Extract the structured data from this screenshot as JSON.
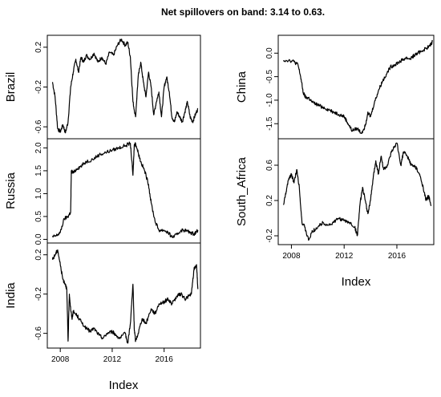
{
  "title": "Net spillovers on band: 3.14 to 0.63.",
  "chart_data": {
    "type": "line",
    "title": "Net spillovers on band: 3.14 to 0.63.",
    "xlabel": "Index",
    "xlim": [
      2007.0,
      2018.8
    ],
    "x_ticks": [
      2008,
      2012,
      2016
    ],
    "x_tick_labels": [
      "2008",
      "2012",
      "2016"
    ],
    "panels": [
      {
        "name": "Brazil",
        "ylabel": "Brazil",
        "ylim": [
          -0.72,
          0.32
        ],
        "y_ticks": [
          0.2,
          -0.2,
          -0.6
        ],
        "y_tick_labels": [
          "0.2",
          "-0.2",
          "-0.6"
        ],
        "x": [
          2007.4,
          2007.6,
          2007.8,
          2008.0,
          2008.2,
          2008.4,
          2008.6,
          2008.8,
          2009.0,
          2009.2,
          2009.4,
          2009.6,
          2009.8,
          2010.0,
          2010.3,
          2010.6,
          2010.9,
          2011.2,
          2011.5,
          2011.8,
          2012.1,
          2012.4,
          2012.7,
          2013.0,
          2013.2,
          2013.4,
          2013.6,
          2013.8,
          2014.0,
          2014.2,
          2014.4,
          2014.6,
          2014.8,
          2015.0,
          2015.2,
          2015.4,
          2015.6,
          2015.8,
          2016.0,
          2016.2,
          2016.4,
          2016.6,
          2016.8,
          2017.0,
          2017.2,
          2017.4,
          2017.6,
          2017.8,
          2018.0,
          2018.2,
          2018.4,
          2018.6
        ],
        "y": [
          -0.15,
          -0.3,
          -0.62,
          -0.65,
          -0.58,
          -0.66,
          -0.55,
          -0.2,
          -0.05,
          0.08,
          -0.05,
          0.1,
          0.05,
          0.12,
          0.08,
          0.14,
          0.05,
          0.1,
          0.03,
          0.15,
          0.12,
          0.22,
          0.28,
          0.22,
          0.25,
          0.1,
          -0.35,
          -0.5,
          -0.1,
          0.05,
          -0.15,
          -0.3,
          -0.05,
          -0.2,
          -0.48,
          -0.35,
          -0.25,
          -0.5,
          -0.2,
          -0.1,
          -0.25,
          -0.5,
          -0.55,
          -0.45,
          -0.5,
          -0.55,
          -0.45,
          -0.35,
          -0.5,
          -0.55,
          -0.48,
          -0.42
        ]
      },
      {
        "name": "Russia",
        "ylabel": "Russia",
        "ylim": [
          -0.08,
          2.2
        ],
        "y_ticks": [
          0.0,
          0.5,
          1.0,
          1.5,
          2.0
        ],
        "y_tick_labels": [
          "0.0",
          "0.5",
          "1.0",
          "1.5",
          "2.0"
        ],
        "x": [
          2007.4,
          2007.7,
          2008.0,
          2008.3,
          2008.6,
          2008.8,
          2008.85,
          2009.0,
          2009.3,
          2009.6,
          2010.0,
          2010.5,
          2011.0,
          2011.5,
          2012.0,
          2012.5,
          2013.0,
          2013.4,
          2013.6,
          2013.7,
          2013.8,
          2014.0,
          2014.2,
          2014.5,
          2014.8,
          2015.0,
          2015.3,
          2015.6,
          2016.0,
          2016.3,
          2016.6,
          2017.0,
          2017.3,
          2017.6,
          2018.0,
          2018.3,
          2018.6
        ],
        "y": [
          0.05,
          0.08,
          0.15,
          0.45,
          0.5,
          0.6,
          1.5,
          1.45,
          1.55,
          1.6,
          1.7,
          1.75,
          1.85,
          1.9,
          1.95,
          2.0,
          2.05,
          2.1,
          1.4,
          2.05,
          2.1,
          1.9,
          1.7,
          1.5,
          1.2,
          0.8,
          0.4,
          0.2,
          0.2,
          0.15,
          0.05,
          0.1,
          0.2,
          0.2,
          0.15,
          0.12,
          0.2
        ]
      },
      {
        "name": "India",
        "ylabel": "India",
        "ylim": [
          -0.75,
          0.32
        ],
        "y_ticks": [
          0.2,
          -0.2,
          -0.6
        ],
        "y_tick_labels": [
          "0.2",
          "-0.2",
          "-0.6"
        ],
        "x": [
          2007.4,
          2007.6,
          2007.8,
          2008.0,
          2008.2,
          2008.4,
          2008.5,
          2008.6,
          2008.7,
          2008.8,
          2008.9,
          2009.0,
          2009.3,
          2009.6,
          2010.0,
          2010.3,
          2010.6,
          2011.0,
          2011.3,
          2011.6,
          2012.0,
          2012.3,
          2012.6,
          2013.0,
          2013.2,
          2013.4,
          2013.6,
          2013.7,
          2013.8,
          2014.0,
          2014.3,
          2014.6,
          2015.0,
          2015.3,
          2015.6,
          2016.0,
          2016.3,
          2016.6,
          2017.0,
          2017.3,
          2017.6,
          2017.9,
          2018.1,
          2018.3,
          2018.5,
          2018.6
        ],
        "y": [
          0.15,
          0.2,
          0.25,
          0.1,
          -0.05,
          -0.1,
          -0.15,
          -0.68,
          -0.2,
          -0.35,
          -0.45,
          -0.38,
          -0.42,
          -0.48,
          -0.55,
          -0.58,
          -0.55,
          -0.62,
          -0.65,
          -0.6,
          -0.58,
          -0.62,
          -0.65,
          -0.6,
          -0.7,
          -0.5,
          -0.1,
          -0.55,
          -0.68,
          -0.6,
          -0.45,
          -0.5,
          -0.35,
          -0.4,
          -0.3,
          -0.28,
          -0.25,
          -0.3,
          -0.22,
          -0.2,
          -0.25,
          -0.22,
          -0.2,
          0.05,
          0.1,
          -0.15
        ]
      },
      {
        "name": "China",
        "ylabel": "China",
        "ylim": [
          -1.82,
          0.38
        ],
        "y_ticks": [
          0.0,
          -0.5,
          -1.0,
          -1.5
        ],
        "y_tick_labels": [
          "0.0",
          "-0.5",
          "-1.0",
          "-1.5"
        ],
        "x": [
          2007.4,
          2007.8,
          2008.2,
          2008.5,
          2008.7,
          2008.9,
          2009.1,
          2009.3,
          2009.6,
          2010.0,
          2010.4,
          2010.8,
          2011.2,
          2011.6,
          2012.0,
          2012.3,
          2012.6,
          2013.0,
          2013.3,
          2013.6,
          2013.8,
          2014.0,
          2014.3,
          2014.6,
          2014.9,
          2015.2,
          2015.5,
          2015.8,
          2016.1,
          2016.4,
          2016.7,
          2017.0,
          2017.3,
          2017.6,
          2017.9,
          2018.2,
          2018.5,
          2018.7
        ],
        "y": [
          -0.15,
          -0.15,
          -0.18,
          -0.25,
          -0.5,
          -0.85,
          -0.95,
          -0.95,
          -1.05,
          -1.1,
          -1.15,
          -1.2,
          -1.25,
          -1.3,
          -1.35,
          -1.5,
          -1.65,
          -1.6,
          -1.7,
          -1.55,
          -1.25,
          -1.35,
          -1.05,
          -0.8,
          -0.6,
          -0.45,
          -0.3,
          -0.25,
          -0.2,
          -0.15,
          -0.1,
          -0.12,
          -0.05,
          0.0,
          0.05,
          0.1,
          0.15,
          0.25
        ]
      },
      {
        "name": "South_Africa",
        "ylabel": "South_Africa",
        "ylim": [
          -0.3,
          0.9
        ],
        "y_ticks": [
          0.6,
          0.2,
          -0.2
        ],
        "y_tick_labels": [
          "0.6",
          "0.2",
          "-0.2"
        ],
        "x": [
          2007.4,
          2007.6,
          2007.8,
          2008.0,
          2008.2,
          2008.4,
          2008.6,
          2008.8,
          2009.0,
          2009.3,
          2009.6,
          2010.0,
          2010.4,
          2010.8,
          2011.2,
          2011.6,
          2012.0,
          2012.4,
          2012.8,
          2013.0,
          2013.2,
          2013.4,
          2013.6,
          2013.8,
          2014.0,
          2014.2,
          2014.4,
          2014.6,
          2014.8,
          2015.0,
          2015.3,
          2015.6,
          2016.0,
          2016.3,
          2016.5,
          2016.8,
          2017.1,
          2017.4,
          2017.7,
          2018.0,
          2018.2,
          2018.4,
          2018.6
        ],
        "y": [
          0.15,
          0.3,
          0.45,
          0.5,
          0.4,
          0.55,
          0.35,
          -0.05,
          -0.1,
          -0.25,
          -0.15,
          -0.1,
          -0.05,
          -0.08,
          -0.05,
          0.0,
          -0.03,
          -0.05,
          -0.1,
          -0.2,
          0.15,
          0.35,
          0.2,
          0.05,
          0.2,
          0.45,
          0.65,
          0.5,
          0.7,
          0.55,
          0.6,
          0.75,
          0.85,
          0.6,
          0.75,
          0.7,
          0.6,
          0.58,
          0.5,
          0.35,
          0.2,
          0.25,
          0.15
        ]
      }
    ]
  }
}
